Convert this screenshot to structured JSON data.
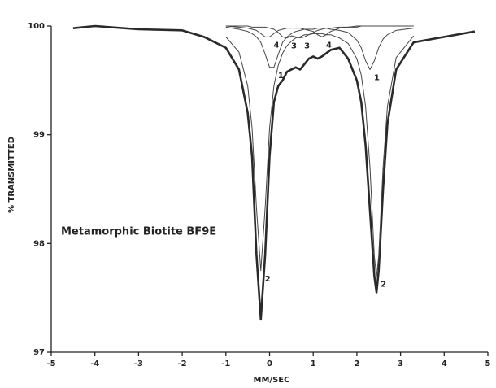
{
  "chart_data": {
    "type": "line",
    "annotation": "Metamorphic Biotite BF9E",
    "xlabel": "MM/SEC",
    "ylabel": "% TRANSMITTED",
    "x": [
      -4.5,
      -4,
      -3,
      -2,
      -1.5,
      -1,
      -0.7,
      -0.5,
      -0.4,
      -0.3,
      -0.2,
      -0.1,
      0,
      0.1,
      0.2,
      0.3,
      0.4,
      0.5,
      0.6,
      0.7,
      0.8,
      0.9,
      1,
      1.1,
      1.2,
      1.3,
      1.4,
      1.6,
      1.8,
      2,
      2.1,
      2.2,
      2.3,
      2.4,
      2.45,
      2.5,
      2.6,
      2.7,
      2.9,
      3.3,
      4,
      4.7
    ],
    "series": [
      {
        "color": "#2a2a2a",
        "values": [
          99.98,
          100,
          99.97,
          99.96,
          99.9,
          99.8,
          99.6,
          99.2,
          98.8,
          97.9,
          97.3,
          97.9,
          98.8,
          99.3,
          99.45,
          99.5,
          99.58,
          99.6,
          99.62,
          99.6,
          99.65,
          99.7,
          99.72,
          99.7,
          99.72,
          99.75,
          99.78,
          99.8,
          99.7,
          99.5,
          99.3,
          98.9,
          98.3,
          97.7,
          97.55,
          97.75,
          98.5,
          99.1,
          99.6,
          99.85,
          99.9,
          99.95
        ]
      },
      {
        "name": "1",
        "color": "#444444",
        "values": [
          null,
          null,
          null,
          null,
          null,
          99.99,
          99.97,
          99.95,
          99.93,
          99.9,
          99.85,
          99.74,
          99.62,
          99.62,
          99.74,
          99.85,
          99.9,
          99.93,
          99.95,
          99.96,
          99.97,
          99.97,
          99.97,
          99.98,
          99.98,
          99.98,
          99.97,
          99.96,
          99.94,
          99.87,
          99.8,
          99.68,
          99.6,
          99.68,
          99.74,
          99.8,
          99.88,
          99.92,
          99.96,
          99.98,
          null,
          null
        ]
      },
      {
        "name": "2",
        "color": "#444444",
        "values": [
          null,
          null,
          null,
          null,
          null,
          99.9,
          99.76,
          99.45,
          99.06,
          98.33,
          97.75,
          98.33,
          99.06,
          99.45,
          99.64,
          99.75,
          99.82,
          99.86,
          99.89,
          99.9,
          99.92,
          99.92,
          99.93,
          99.93,
          99.93,
          99.92,
          99.92,
          99.89,
          99.84,
          99.7,
          99.55,
          99.26,
          98.7,
          97.88,
          97.7,
          97.88,
          98.7,
          99.26,
          99.71,
          99.91,
          null,
          null
        ]
      },
      {
        "name": "3",
        "color": "#444444",
        "values": [
          null,
          null,
          null,
          null,
          null,
          100,
          100,
          100,
          99.99,
          99.99,
          99.99,
          99.99,
          99.98,
          99.97,
          99.94,
          99.9,
          99.89,
          99.91,
          99.9,
          99.89,
          99.9,
          99.92,
          99.94,
          99.96,
          99.97,
          99.98,
          99.98,
          99.99,
          99.99,
          100,
          100,
          100,
          100,
          100,
          100,
          100,
          100,
          100,
          100,
          100,
          null,
          null
        ]
      },
      {
        "name": "4",
        "color": "#444444",
        "values": [
          null,
          null,
          null,
          null,
          null,
          100,
          99.99,
          99.98,
          99.97,
          99.96,
          99.93,
          99.9,
          99.9,
          99.93,
          99.96,
          99.97,
          99.98,
          99.98,
          99.98,
          99.98,
          99.97,
          99.96,
          99.95,
          99.92,
          99.9,
          99.92,
          99.95,
          99.98,
          99.99,
          99.99,
          100,
          100,
          100,
          100,
          100,
          100,
          100,
          100,
          100,
          100,
          null,
          null
        ]
      }
    ],
    "xlim": [
      -5,
      5
    ],
    "xticks": [
      -5,
      -4,
      -3,
      -2,
      -1,
      0,
      1,
      2,
      3,
      4,
      5
    ],
    "ylim": [
      97,
      100
    ],
    "yticks": [
      97,
      98,
      99,
      100
    ],
    "grid": false
  }
}
